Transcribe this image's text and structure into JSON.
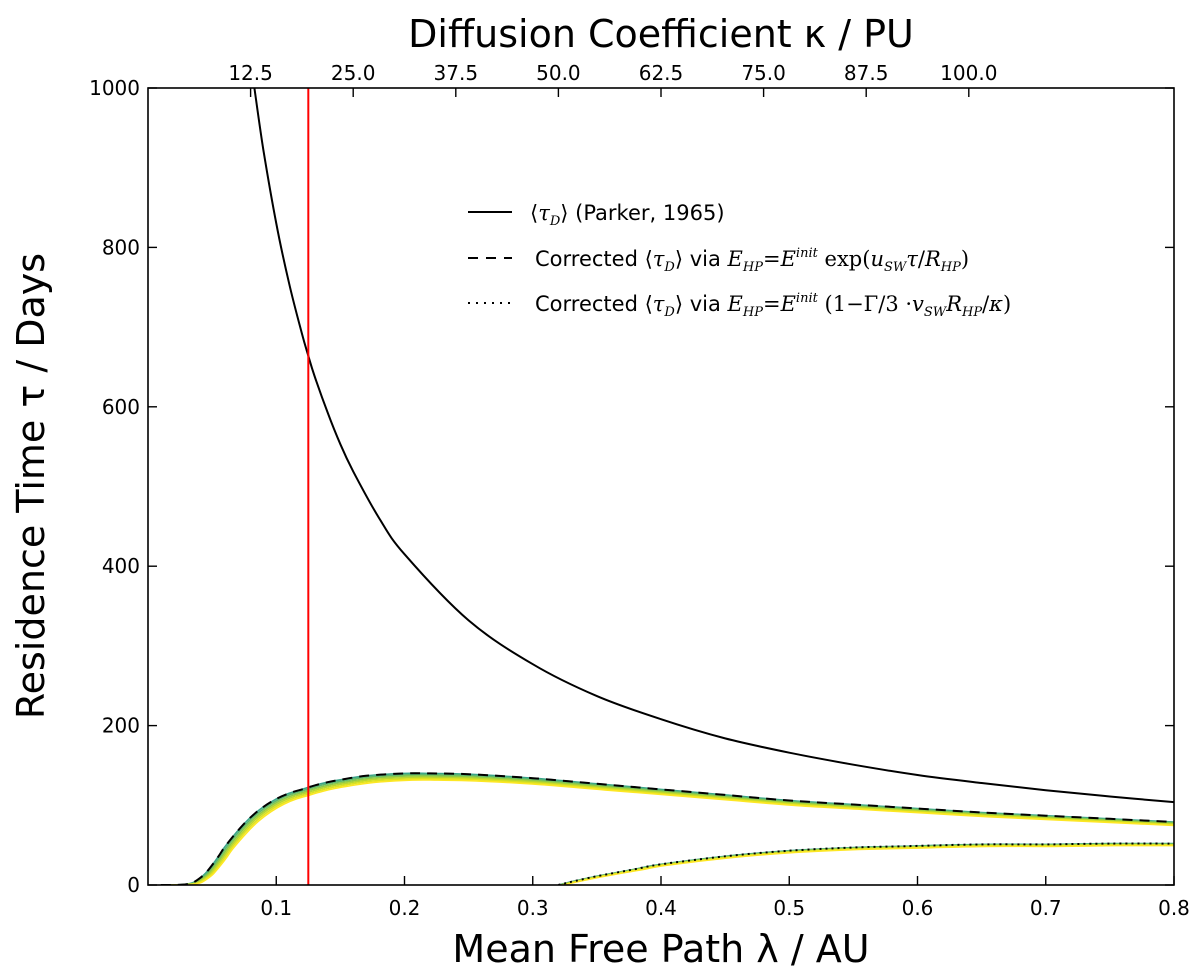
{
  "chart_data": {
    "type": "line",
    "title": "",
    "xlabel": "Mean Free Path λ / AU",
    "ylabel": "Residence Time τ / Days",
    "top_xlabel": "Diffusion Coefficient κ / PU",
    "xlim": [
      0.0,
      0.8
    ],
    "ylim": [
      0,
      1000
    ],
    "x_ticks": [
      0.1,
      0.2,
      0.3,
      0.4,
      0.5,
      0.6,
      0.7,
      0.8
    ],
    "y_ticks": [
      0,
      200,
      400,
      600,
      800,
      1000
    ],
    "top_ticks": [
      12.5,
      25.0,
      37.5,
      50.0,
      62.5,
      75.0,
      87.5,
      100.0
    ],
    "top_tick_labels": [
      "12.5",
      "25.0",
      "37.5",
      "50.0",
      "62.5",
      "75.0",
      "87.5",
      "100.0"
    ],
    "grid": false,
    "legend_position": "upper-right",
    "vertical_line": {
      "x": 0.125,
      "color": "#ff0000"
    },
    "series": [
      {
        "name": "⟨τD⟩ (Parker, 1965)",
        "style": "solid",
        "color": "#000000",
        "x": [
          0.083,
          0.09,
          0.1,
          0.11,
          0.12,
          0.125,
          0.13,
          0.14,
          0.15,
          0.16,
          0.18,
          0.2,
          0.25,
          0.3,
          0.35,
          0.4,
          0.45,
          0.5,
          0.55,
          0.6,
          0.65,
          0.7,
          0.75,
          0.8
        ],
        "y": [
          1000,
          922,
          830,
          755,
          692,
          664,
          638,
          593,
          553,
          519,
          461,
          415,
          332,
          277,
          237,
          208,
          184,
          166,
          151,
          138,
          128,
          119,
          111,
          104
        ]
      },
      {
        "name": "Corrected ⟨τD⟩ via E_HP = E^init exp(u_SW τ / R_HP)",
        "style": "dashed",
        "color": "#000000",
        "x": [
          0.01,
          0.02,
          0.03,
          0.035,
          0.04,
          0.045,
          0.05,
          0.055,
          0.06,
          0.07,
          0.08,
          0.09,
          0.1,
          0.11,
          0.12,
          0.13,
          0.14,
          0.15,
          0.17,
          0.2,
          0.22,
          0.25,
          0.3,
          0.35,
          0.4,
          0.45,
          0.5,
          0.55,
          0.6,
          0.65,
          0.7,
          0.75,
          0.8
        ],
        "y": [
          0,
          0,
          1,
          3,
          8,
          15,
          25,
          36,
          48,
          68,
          85,
          98,
          108,
          115,
          120,
          125,
          129,
          132,
          137,
          140,
          140,
          139,
          134,
          127,
          120,
          113,
          106,
          101,
          96,
          91,
          87,
          83,
          79
        ]
      },
      {
        "name": "Corrected ⟨τD⟩ via E_HP = E^init (1 − Γ/3 · v_SW R_HP / κ)",
        "style": "dotted",
        "color": "#000000",
        "x": [
          0.32,
          0.33,
          0.35,
          0.38,
          0.4,
          0.45,
          0.5,
          0.55,
          0.6,
          0.65,
          0.7,
          0.75,
          0.8
        ],
        "y": [
          0,
          4,
          11,
          20,
          26,
          36,
          43,
          47,
          49,
          51,
          51,
          52,
          52
        ]
      }
    ],
    "colormap_band": {
      "colors": [
        "#3aa38a",
        "#5cb870",
        "#8dc94a",
        "#b8d630",
        "#dde21f",
        "#fde725"
      ]
    },
    "legend": [
      {
        "text_before": "",
        "text_after": " (Parker, 1965)",
        "via": ""
      },
      {
        "text_before": "Corrected ",
        "text_after": " via ",
        "formula": "exp"
      },
      {
        "text_before": "Corrected ",
        "text_after": " via ",
        "formula": "lin"
      }
    ]
  }
}
